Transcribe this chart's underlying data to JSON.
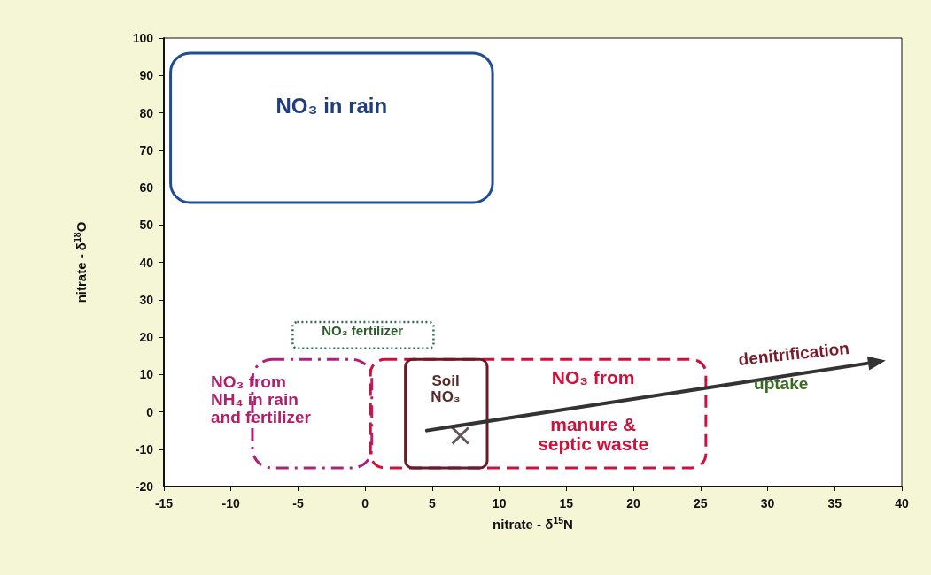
{
  "chart_data": {
    "type": "scatter",
    "xlabel": "nitrate - δ$^{15}$N",
    "ylabel": "nitrate - δ$^{18}$O",
    "xlim": [
      -15,
      40
    ],
    "xticks": [
      -15,
      -10,
      -5,
      0,
      5,
      10,
      15,
      20,
      25,
      30,
      35,
      40
    ],
    "ylim": [
      -20,
      100
    ],
    "yticks": [
      -20,
      -10,
      0,
      10,
      20,
      30,
      40,
      50,
      60,
      70,
      80,
      90,
      100
    ],
    "grid": false,
    "series": [
      {
        "color": "#3a2a2a",
        "marker": "cross",
        "x": [
          7.1
        ],
        "values": [
          -6.4
        ]
      }
    ],
    "annotations": [
      "NO₃ in rain",
      "NO₃ fertilizer",
      "NO₃ from\nNH₄ in rain\nand fertilizer",
      "Soil\nNO₃",
      "NO₃ from",
      "manure &\nseptic waste",
      "denitrification",
      "uptake"
    ]
  }
}
